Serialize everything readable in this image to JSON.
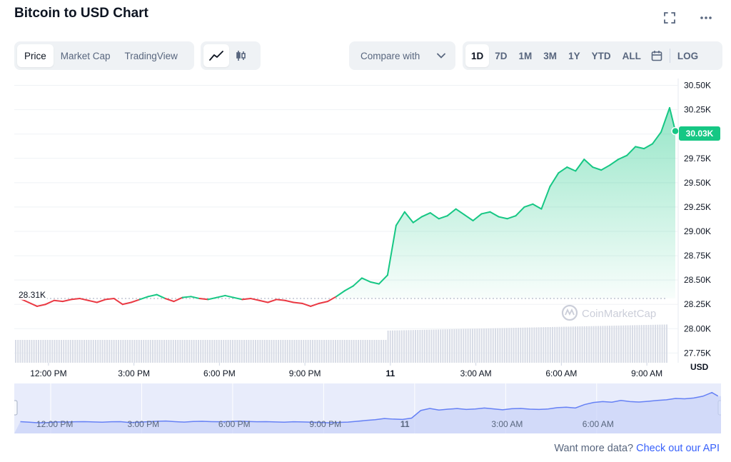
{
  "header": {
    "title": "Bitcoin to USD Chart"
  },
  "tabs": [
    {
      "label": "Price",
      "active": true
    },
    {
      "label": "Market Cap",
      "active": false
    },
    {
      "label": "TradingView",
      "active": false
    }
  ],
  "chart_type_icons": [
    "line-chart-icon",
    "candlestick-icon"
  ],
  "compare": {
    "label": "Compare with"
  },
  "ranges": [
    "1D",
    "7D",
    "1M",
    "3M",
    "1Y",
    "YTD",
    "ALL"
  ],
  "active_range": "1D",
  "log_label": "LOG",
  "watermark": "CoinMarketCap",
  "current_price_label": "30.03K",
  "start_price_label": "28.31K",
  "footer": {
    "prefix": "Want more data? ",
    "link": "Check out our API"
  },
  "colors": {
    "up": "#16c784",
    "down": "#ea3943",
    "navigator_line": "#6681f5"
  },
  "chart_data": {
    "type": "line",
    "ylabel": "USD",
    "ylim": [
      27650,
      30570
    ],
    "y_ticks": [
      "30.50K",
      "30.25K",
      "30.00K",
      "29.75K",
      "29.50K",
      "29.25K",
      "29.00K",
      "28.75K",
      "28.50K",
      "28.25K",
      "28.00K",
      "27.75K"
    ],
    "y_tick_values": [
      30500,
      30250,
      30000,
      29750,
      29500,
      29250,
      29000,
      28750,
      28500,
      28250,
      28000,
      27750
    ],
    "x_ticks": [
      "12:00 PM",
      "3:00 PM",
      "6:00 PM",
      "9:00 PM",
      "11",
      "3:00 AM",
      "6:00 AM",
      "9:00 AM"
    ],
    "x_tick_hours": [
      0,
      3,
      6,
      9,
      12,
      15,
      18,
      21
    ],
    "x_range_hours": [
      -1.2,
      22.1
    ],
    "baseline": 28310,
    "current": 30030,
    "series": [
      {
        "x": [
          -1.0,
          -0.7,
          -0.4,
          -0.1,
          0.2,
          0.5,
          0.8,
          1.1,
          1.4,
          1.7,
          2.0,
          2.3,
          2.6,
          2.9,
          3.2,
          3.5,
          3.8,
          4.1,
          4.4,
          4.7,
          5.0,
          5.3,
          5.6,
          5.9,
          6.2,
          6.5,
          6.8,
          7.1,
          7.4,
          7.7,
          8.0,
          8.3,
          8.6,
          8.9,
          9.2,
          9.5,
          9.8,
          10.1,
          10.4,
          10.7,
          11.0,
          11.3,
          11.6,
          11.9,
          12.2,
          12.5,
          12.8,
          13.1,
          13.4,
          13.7,
          14.0,
          14.3,
          14.6,
          14.9,
          15.2,
          15.5,
          15.8,
          16.1,
          16.4,
          16.7,
          17.0,
          17.3,
          17.6,
          17.9,
          18.2,
          18.5,
          18.8,
          19.1,
          19.4,
          19.7,
          20.0,
          20.3,
          20.6,
          20.9,
          21.2,
          21.5,
          21.8,
          22.0
        ],
        "y": [
          28310,
          28270,
          28230,
          28250,
          28290,
          28280,
          28300,
          28310,
          28290,
          28270,
          28300,
          28310,
          28250,
          28270,
          28300,
          28330,
          28350,
          28310,
          28280,
          28320,
          28330,
          28310,
          28300,
          28320,
          28340,
          28320,
          28300,
          28310,
          28290,
          28270,
          28300,
          28290,
          28270,
          28260,
          28230,
          28260,
          28280,
          28330,
          28390,
          28440,
          28520,
          28480,
          28460,
          28550,
          29060,
          29200,
          29090,
          29150,
          29190,
          29130,
          29160,
          29230,
          29170,
          29110,
          29180,
          29200,
          29150,
          29130,
          29160,
          29250,
          29280,
          29230,
          29460,
          29600,
          29660,
          29620,
          29740,
          29660,
          29630,
          29680,
          29740,
          29780,
          29870,
          29850,
          29900,
          30020,
          30270,
          30030
        ]
      }
    ]
  },
  "navigator": {
    "x_ticks": [
      "12:00 PM",
      "3:00 PM",
      "6:00 PM",
      "9:00 PM",
      "11",
      "3:00 AM",
      "6:00 AM"
    ]
  }
}
